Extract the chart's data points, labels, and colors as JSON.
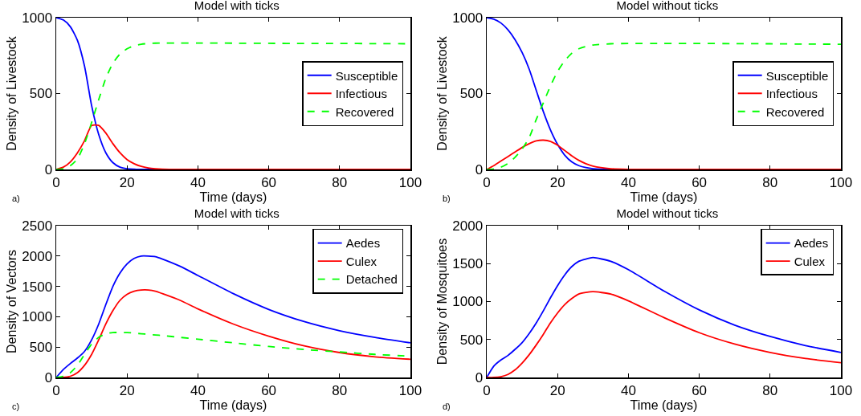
{
  "chart_data": [
    {
      "type": "line",
      "title": "Model with ticks",
      "xlabel": "Time (days)",
      "ylabel": "Density of Livestock",
      "annotations": [
        "a)"
      ],
      "x": [
        0,
        2,
        4,
        6,
        8,
        10,
        12,
        14,
        16,
        18,
        20,
        22,
        24,
        26,
        28,
        30,
        35,
        40,
        50,
        60,
        70,
        80,
        90,
        100
      ],
      "xlim": [
        0,
        100
      ],
      "xticks": [
        0,
        20,
        40,
        60,
        80,
        100
      ],
      "ylim": [
        0,
        1000
      ],
      "yticks": [
        0,
        500,
        1000
      ],
      "grid": false,
      "legend": "right",
      "marker": "none",
      "series": [
        {
          "name": "Susceptible",
          "color": "#0000ff",
          "line_style": "solid",
          "values": [
            1000,
            985,
            940,
            850,
            680,
            420,
            230,
            110,
            45,
            15,
            5,
            2,
            0,
            0,
            0,
            null,
            null,
            null,
            null,
            null,
            null,
            null,
            null,
            null
          ]
        },
        {
          "name": "Infectious",
          "color": "#ff0000",
          "line_style": "solid",
          "values": [
            0,
            15,
            50,
            110,
            190,
            290,
            290,
            240,
            170,
            110,
            65,
            38,
            20,
            10,
            5,
            2,
            0,
            0,
            0,
            0,
            0,
            0,
            0,
            0
          ]
        },
        {
          "name": "Recovered",
          "color": "#00ff00",
          "line_style": "dashed",
          "values": [
            0,
            5,
            25,
            70,
            170,
            310,
            460,
            600,
            700,
            760,
            795,
            815,
            825,
            830,
            832,
            833,
            833,
            833,
            832,
            831,
            830,
            830,
            829,
            828
          ]
        }
      ]
    },
    {
      "type": "line",
      "title": "Model without ticks",
      "xlabel": "Time (days)",
      "ylabel": "Density of Livestock",
      "annotations": [
        "b)"
      ],
      "x": [
        0,
        2,
        4,
        6,
        8,
        10,
        12,
        14,
        16,
        18,
        20,
        22,
        24,
        26,
        28,
        30,
        35,
        40,
        50,
        60,
        70,
        80,
        90,
        100
      ],
      "xlim": [
        0,
        100
      ],
      "xticks": [
        0,
        20,
        40,
        60,
        80,
        100
      ],
      "ylim": [
        0,
        1000
      ],
      "yticks": [
        0,
        500,
        1000
      ],
      "grid": false,
      "legend": "right",
      "marker": "none",
      "series": [
        {
          "name": "Susceptible",
          "color": "#0000ff",
          "line_style": "solid",
          "values": [
            1000,
            990,
            965,
            920,
            855,
            770,
            660,
            520,
            380,
            260,
            165,
            95,
            50,
            25,
            12,
            5,
            0,
            0,
            null,
            null,
            null,
            null,
            null,
            null
          ]
        },
        {
          "name": "Infectious",
          "color": "#ff0000",
          "line_style": "solid",
          "values": [
            0,
            25,
            55,
            85,
            115,
            145,
            170,
            188,
            193,
            185,
            160,
            125,
            90,
            60,
            38,
            22,
            5,
            1,
            0,
            0,
            0,
            0,
            0,
            0
          ]
        },
        {
          "name": "Recovered",
          "color": "#00ff00",
          "line_style": "dashed",
          "values": [
            0,
            3,
            15,
            40,
            80,
            135,
            210,
            330,
            440,
            550,
            645,
            715,
            765,
            795,
            810,
            820,
            828,
            830,
            830,
            830,
            829,
            828,
            826,
            825
          ]
        }
      ]
    },
    {
      "type": "line",
      "title": "Model with ticks",
      "xlabel": "Time (days)",
      "ylabel": "Density of Vectors",
      "annotations": [
        "c)"
      ],
      "x": [
        0,
        2,
        4,
        6,
        8,
        10,
        12,
        14,
        16,
        18,
        20,
        22,
        24,
        26,
        28,
        30,
        35,
        40,
        50,
        60,
        70,
        80,
        90,
        100
      ],
      "xlim": [
        0,
        100
      ],
      "xticks": [
        0,
        20,
        40,
        60,
        80,
        100
      ],
      "ylim": [
        0,
        2500
      ],
      "yticks": [
        0,
        500,
        1000,
        1500,
        2000,
        2500
      ],
      "grid": false,
      "legend": "top right",
      "marker": "none",
      "series": [
        {
          "name": "Aedes",
          "color": "#0000ff",
          "line_style": "solid",
          "values": [
            0,
            130,
            230,
            320,
            430,
            620,
            880,
            1200,
            1500,
            1720,
            1870,
            1960,
            2000,
            2000,
            1990,
            1950,
            1830,
            1680,
            1380,
            1120,
            920,
            770,
            660,
            570
          ]
        },
        {
          "name": "Culex",
          "color": "#ff0000",
          "line_style": "solid",
          "values": [
            0,
            0,
            20,
            80,
            200,
            380,
            620,
            880,
            1100,
            1270,
            1370,
            1420,
            1440,
            1440,
            1420,
            1380,
            1270,
            1130,
            880,
            680,
            520,
            410,
            340,
            300
          ]
        },
        {
          "name": "Detached",
          "color": "#00ff00",
          "line_style": "dashed",
          "values": [
            0,
            20,
            80,
            200,
            380,
            550,
            660,
            720,
            740,
            740,
            740,
            730,
            720,
            710,
            700,
            690,
            660,
            630,
            570,
            510,
            460,
            420,
            380,
            350
          ]
        }
      ]
    },
    {
      "type": "line",
      "title": "Model without ticks",
      "xlabel": "Time (days)",
      "ylabel": "Density of Mosquitoes",
      "annotations": [
        "d)"
      ],
      "x": [
        0,
        2,
        4,
        6,
        8,
        10,
        12,
        14,
        16,
        18,
        20,
        22,
        24,
        26,
        28,
        30,
        35,
        40,
        50,
        60,
        70,
        80,
        90,
        100
      ],
      "xlim": [
        0,
        100
      ],
      "xticks": [
        0,
        20,
        40,
        60,
        80,
        100
      ],
      "ylim": [
        0,
        2000
      ],
      "yticks": [
        0,
        500,
        1000,
        1500,
        2000
      ],
      "grid": false,
      "legend": "top right",
      "marker": "none",
      "series": [
        {
          "name": "Aedes",
          "color": "#0000ff",
          "line_style": "solid",
          "values": [
            0,
            150,
            230,
            290,
            370,
            460,
            580,
            720,
            880,
            1050,
            1210,
            1350,
            1460,
            1530,
            1560,
            1580,
            1530,
            1420,
            1140,
            890,
            690,
            540,
            420,
            330
          ]
        },
        {
          "name": "Culex",
          "color": "#ff0000",
          "line_style": "solid",
          "values": [
            0,
            0,
            10,
            40,
            100,
            190,
            300,
            430,
            570,
            720,
            850,
            960,
            1040,
            1100,
            1120,
            1130,
            1100,
            1010,
            790,
            590,
            440,
            330,
            250,
            195
          ]
        }
      ]
    }
  ]
}
